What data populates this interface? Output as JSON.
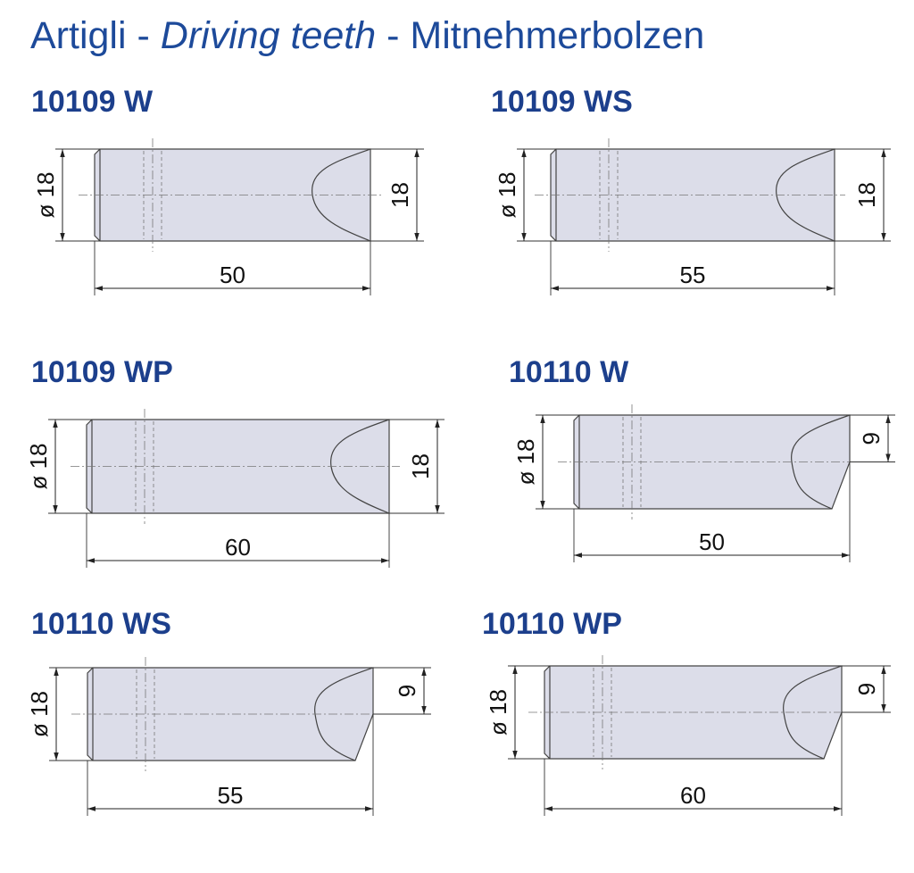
{
  "title": {
    "it": "Artigli",
    "separator": "-",
    "en": "Driving teeth",
    "de": "Mitnehmerbolzen"
  },
  "parts": [
    {
      "code": "10109 W",
      "diameter": "ø 18",
      "height": 18,
      "length": 50
    },
    {
      "code": "10109 WS",
      "diameter": "ø 18",
      "height": 18,
      "length": 55
    },
    {
      "code": "10109 WP",
      "diameter": "ø 18",
      "height": 18,
      "length": 60
    },
    {
      "code": "10110 W",
      "diameter": "ø 18",
      "height": 9,
      "length": 50
    },
    {
      "code": "10110 WS",
      "diameter": "ø 18",
      "height": 9,
      "length": 55
    },
    {
      "code": "10110  WP",
      "diameter": "ø 18",
      "height": 9,
      "length": 60
    }
  ]
}
